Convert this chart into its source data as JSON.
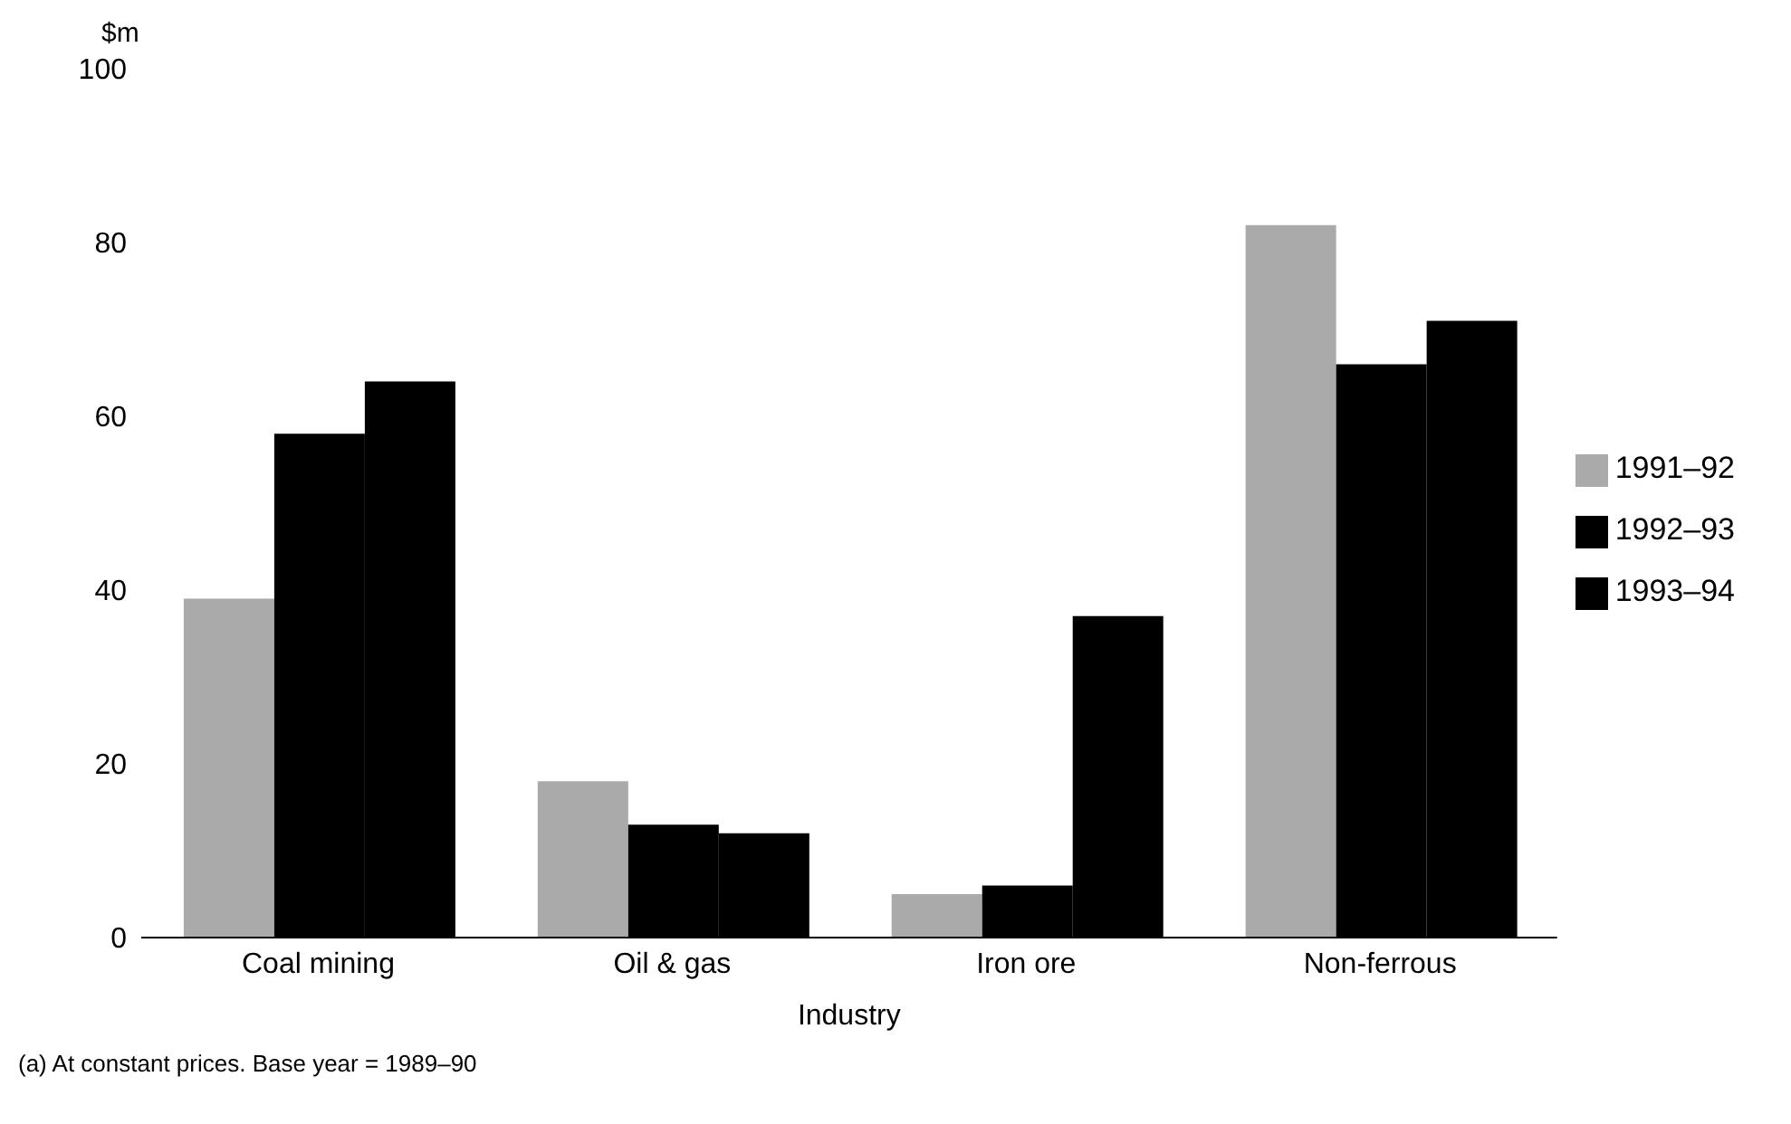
{
  "chart_data": {
    "type": "bar",
    "ylabel": "$m",
    "xlabel": "Industry",
    "categories": [
      "Coal mining",
      "Oil & gas",
      "Iron ore",
      "Non-ferrous"
    ],
    "series": [
      {
        "name": "1991–92",
        "color": "#aaaaaa",
        "values": [
          39,
          18,
          5,
          82
        ]
      },
      {
        "name": "1992–93",
        "color": "#000000",
        "values": [
          58,
          13,
          6,
          66
        ]
      },
      {
        "name": "1993–94",
        "color": "#000000",
        "values": [
          64,
          12,
          37,
          71
        ]
      }
    ],
    "ylim": [
      0,
      100
    ],
    "yticks": [
      0,
      20,
      40,
      60,
      80,
      100
    ],
    "legend": "right",
    "annotations": [
      "(a) At constant prices.  Base year = 1989–90"
    ]
  }
}
